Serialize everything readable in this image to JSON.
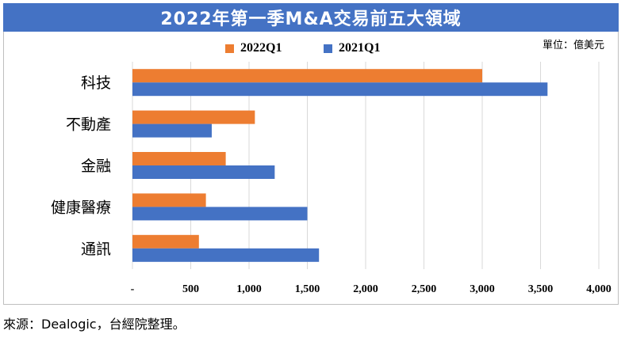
{
  "title": "2022年第一季M&A交易前五大領域",
  "unit": "單位：億美元",
  "source": "來源：Dealogic，台經院整理。",
  "colors": {
    "s2022": "#ed7d31",
    "s2021": "#4472c4",
    "title_bg": "#4472c4"
  },
  "chart_data": {
    "type": "bar",
    "orientation": "horizontal",
    "categories": [
      "科技",
      "不動產",
      "金融",
      "健康醫療",
      "通訊"
    ],
    "series": [
      {
        "name": "2022Q1",
        "color": "#ed7d31",
        "values": [
          3000,
          1050,
          800,
          630,
          570
        ]
      },
      {
        "name": "2021Q1",
        "color": "#4472c4",
        "values": [
          3560,
          680,
          1220,
          1500,
          1600
        ]
      }
    ],
    "xlim": [
      0,
      4000
    ],
    "x_ticks": [
      0,
      500,
      1000,
      1500,
      2000,
      2500,
      3000,
      3500,
      4000
    ],
    "x_tick_labels": [
      "-",
      "500",
      "1,000",
      "1,500",
      "2,000",
      "2,500",
      "3,000",
      "3,500",
      "4,000"
    ],
    "grid": true,
    "legend": "top-center"
  }
}
